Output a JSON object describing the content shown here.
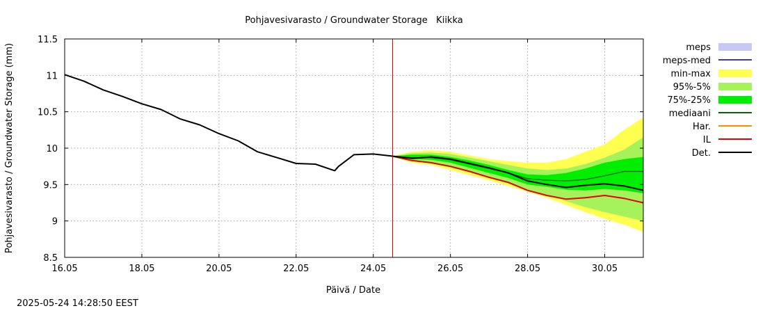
{
  "chart_data": {
    "type": "area",
    "title": "Pohjavesivarasto / Groundwater Storage   Kiikka",
    "xlabel": "Päivä / Date",
    "ylabel": "Pohjavesivarasto / Groundwater Storage (mm)",
    "xlim": [
      16.0,
      31.0
    ],
    "ylim": [
      8.5,
      11.5
    ],
    "grid": true,
    "x_ticks": [
      16,
      18,
      20,
      22,
      24,
      26,
      28,
      30
    ],
    "x_tick_labels": [
      "16.05",
      "18.05",
      "20.05",
      "22.05",
      "24.05",
      "26.05",
      "28.05",
      "30.05"
    ],
    "y_ticks": [
      8.5,
      9,
      9.5,
      10,
      10.5,
      11,
      11.5
    ],
    "y_tick_labels": [
      "8.5",
      "9",
      "9.5",
      "10",
      "10.5",
      "11",
      "11.5"
    ],
    "forecast_start": 24.5,
    "forecast_start_color": "#cc0000",
    "legend_position": "right",
    "legend": [
      {
        "key": "meps",
        "label": "meps",
        "kind": "fill",
        "color": "#c8c8f4"
      },
      {
        "key": "meps_med",
        "label": "meps-med",
        "kind": "line",
        "color": "#3a3ab8"
      },
      {
        "key": "minmax",
        "label": "min-max",
        "kind": "fill",
        "color": "#ffff50"
      },
      {
        "key": "p95_5",
        "label": "95%-5%",
        "kind": "fill",
        "color": "#a6f25a"
      },
      {
        "key": "p75_25",
        "label": "75%-25%",
        "kind": "fill",
        "color": "#00ee00"
      },
      {
        "key": "mediaani",
        "label": "mediaani",
        "kind": "line",
        "color": "#006400"
      },
      {
        "key": "har",
        "label": "Har.",
        "kind": "line",
        "color": "#ff8c00"
      },
      {
        "key": "il",
        "label": "IL",
        "kind": "line",
        "color": "#e00000"
      },
      {
        "key": "det",
        "label": "Det.",
        "kind": "line",
        "color": "#000000"
      }
    ],
    "observed": {
      "name": "Det.",
      "x": [
        16.0,
        16.5,
        17.0,
        17.5,
        18.0,
        18.5,
        19.0,
        19.5,
        20.0,
        20.5,
        21.0,
        21.5,
        22.0,
        22.5,
        23.0,
        23.1,
        23.5,
        24.0,
        24.5
      ],
      "y": [
        11.01,
        10.92,
        10.8,
        10.71,
        10.61,
        10.53,
        10.4,
        10.32,
        10.2,
        10.1,
        9.95,
        9.87,
        9.79,
        9.78,
        9.69,
        9.75,
        9.91,
        9.92,
        9.89
      ]
    },
    "forecast": {
      "x": [
        24.5,
        25.0,
        25.5,
        26.0,
        26.5,
        27.0,
        27.5,
        28.0,
        28.5,
        29.0,
        29.5,
        30.0,
        30.5,
        31.0
      ],
      "minmax_upper": [
        9.89,
        9.95,
        9.97,
        9.95,
        9.9,
        9.85,
        9.82,
        9.8,
        9.8,
        9.85,
        9.95,
        10.05,
        10.25,
        10.42
      ],
      "minmax_lower": [
        9.88,
        9.8,
        9.77,
        9.7,
        9.63,
        9.56,
        9.48,
        9.4,
        9.32,
        9.22,
        9.12,
        9.03,
        8.95,
        8.85
      ],
      "p95_upper": [
        9.89,
        9.93,
        9.94,
        9.92,
        9.87,
        9.82,
        9.77,
        9.72,
        9.7,
        9.72,
        9.78,
        9.87,
        9.98,
        10.15
      ],
      "p95_lower": [
        9.88,
        9.82,
        9.79,
        9.73,
        9.67,
        9.59,
        9.51,
        9.43,
        9.36,
        9.27,
        9.19,
        9.12,
        9.06,
        9.0
      ],
      "p75_upper": [
        9.89,
        9.91,
        9.91,
        9.88,
        9.83,
        9.77,
        9.7,
        9.64,
        9.63,
        9.66,
        9.72,
        9.8,
        9.85,
        9.88
      ],
      "p75_lower": [
        9.88,
        9.85,
        9.84,
        9.8,
        9.73,
        9.66,
        9.59,
        9.5,
        9.47,
        9.43,
        9.42,
        9.44,
        9.42,
        9.38
      ],
      "mediaani": [
        9.89,
        9.87,
        9.87,
        9.84,
        9.78,
        9.72,
        9.66,
        9.58,
        9.56,
        9.55,
        9.57,
        9.62,
        9.68,
        9.68
      ],
      "det": [
        9.89,
        9.86,
        9.88,
        9.85,
        9.79,
        9.73,
        9.66,
        9.55,
        9.5,
        9.46,
        9.49,
        9.51,
        9.48,
        9.42
      ],
      "il": [
        9.89,
        9.83,
        9.8,
        9.75,
        9.68,
        9.6,
        9.53,
        9.42,
        9.35,
        9.3,
        9.32,
        9.35,
        9.31,
        9.25
      ]
    }
  },
  "footer": {
    "timestamp": "2025-05-24 14:28:50 EEST"
  }
}
